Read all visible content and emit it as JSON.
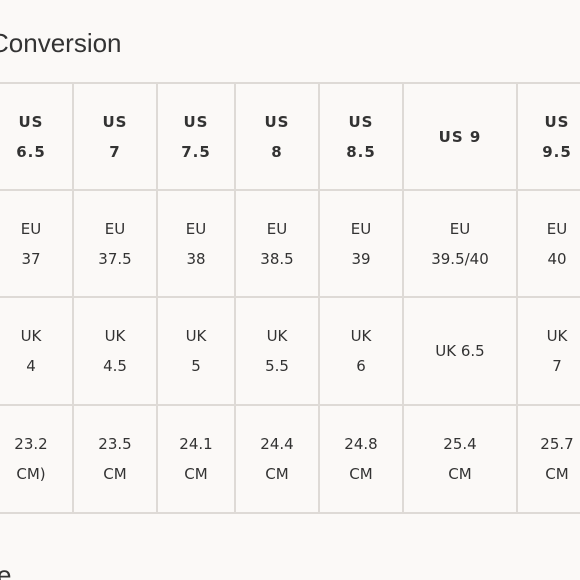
{
  "title": "Conversion",
  "bottom_fragment": "e",
  "rows": [
    [
      {
        "l1": "US",
        "l2": "6.5"
      },
      {
        "l1": "US",
        "l2": "7"
      },
      {
        "l1": "US",
        "l2": "7.5"
      },
      {
        "l1": "US",
        "l2": "8"
      },
      {
        "l1": "US",
        "l2": "8.5"
      },
      {
        "l1": "US 9",
        "l2": ""
      },
      {
        "l1": "US",
        "l2": "9.5"
      }
    ],
    [
      {
        "l1": "EU",
        "l2": "37"
      },
      {
        "l1": "EU",
        "l2": "37.5"
      },
      {
        "l1": "EU",
        "l2": "38"
      },
      {
        "l1": "EU",
        "l2": "38.5"
      },
      {
        "l1": "EU",
        "l2": "39"
      },
      {
        "l1": "EU",
        "l2": "39.5/40"
      },
      {
        "l1": "EU",
        "l2": "40"
      }
    ],
    [
      {
        "l1": "UK",
        "l2": "4"
      },
      {
        "l1": "UK",
        "l2": "4.5"
      },
      {
        "l1": "UK",
        "l2": "5"
      },
      {
        "l1": "UK",
        "l2": "5.5"
      },
      {
        "l1": "UK",
        "l2": "6"
      },
      {
        "l1": "UK 6.5",
        "l2": ""
      },
      {
        "l1": "UK",
        "l2": "7"
      }
    ],
    [
      {
        "l1": "23.2",
        "l2": "CM)"
      },
      {
        "l1": "23.5",
        "l2": "CM"
      },
      {
        "l1": "24.1",
        "l2": "CM"
      },
      {
        "l1": "24.4",
        "l2": "CM"
      },
      {
        "l1": "24.8",
        "l2": "CM"
      },
      {
        "l1": "25.4",
        "l2": "CM"
      },
      {
        "l1": "25.7",
        "l2": "CM"
      }
    ]
  ]
}
